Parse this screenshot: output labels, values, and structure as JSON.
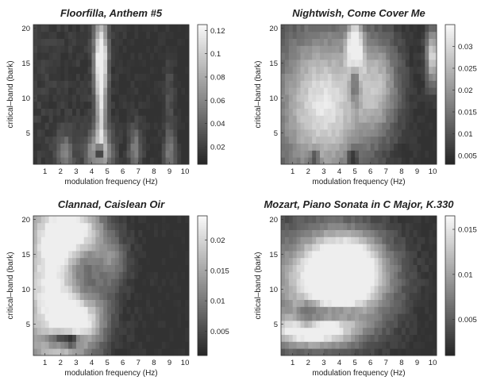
{
  "chart_data": [
    {
      "type": "heatmap",
      "title": "Floorfilla, Anthem #5",
      "xlabel": "modulation frequency (Hz)",
      "ylabel": "critical–band (bark)",
      "xticks": [
        1,
        2,
        3,
        4,
        5,
        6,
        7,
        8,
        9,
        10
      ],
      "yticks": [
        5,
        10,
        15,
        20
      ],
      "xlim": [
        0.25,
        10.25
      ],
      "ylim": [
        0.5,
        20.5
      ],
      "colorbar_ticks": [
        "0.12",
        "0.1",
        "0.08",
        "0.06",
        "0.04",
        "0.02"
      ],
      "colorbar_values": [
        0.12,
        0.1,
        0.08,
        0.06,
        0.04,
        0.02
      ],
      "clim": [
        0.005,
        0.125
      ],
      "colormap": "gray (dark = low, white = high)",
      "blobs": [
        {
          "x": 4.6,
          "y": 16,
          "sx": 0.3,
          "sy": 4,
          "value": 0.12
        },
        {
          "x": 4.6,
          "y": 8,
          "sx": 0.22,
          "sy": 6,
          "value": 0.08
        },
        {
          "x": 4.5,
          "y": 2.5,
          "sx": 0.55,
          "sy": 2,
          "value": 0.09
        },
        {
          "x": 2.3,
          "y": 2,
          "sx": 0.35,
          "sy": 2,
          "value": 0.05
        },
        {
          "x": 6.8,
          "y": 2.5,
          "sx": 0.3,
          "sy": 2.5,
          "value": 0.05
        },
        {
          "x": 9.0,
          "y": 2,
          "sx": 0.3,
          "sy": 2,
          "value": 0.045
        },
        {
          "x": 9.0,
          "y": 9,
          "sx": 0.25,
          "sy": 5,
          "value": 0.025
        }
      ],
      "dark_spots": [
        {
          "x": 4.5,
          "y": 2.2,
          "sx": 0.22,
          "sy": 1.0,
          "value": 0.005
        }
      ]
    },
    {
      "type": "heatmap",
      "title": "Nightwish, Come Cover Me",
      "xlabel": "modulation frequency (Hz)",
      "ylabel": "critical–band (bark)",
      "xticks": [
        1,
        2,
        3,
        4,
        5,
        6,
        7,
        8,
        9,
        10
      ],
      "yticks": [
        5,
        10,
        15,
        20
      ],
      "xlim": [
        0.25,
        10.25
      ],
      "ylim": [
        0.5,
        20.5
      ],
      "colorbar_ticks": [
        "0.03",
        "0.025",
        "0.02",
        "0.015",
        "0.01",
        "0.005"
      ],
      "colorbar_values": [
        0.03,
        0.025,
        0.02,
        0.015,
        0.01,
        0.005
      ],
      "clim": [
        0.003,
        0.035
      ],
      "colormap": "gray (dark = low, white = high)",
      "blobs": [
        {
          "x": 3.0,
          "y": 9,
          "sx": 2.0,
          "sy": 7.5,
          "value": 0.03
        },
        {
          "x": 5.0,
          "y": 17,
          "sx": 0.35,
          "sy": 3,
          "value": 0.034
        },
        {
          "x": 10.0,
          "y": 16,
          "sx": 0.3,
          "sy": 3,
          "value": 0.03
        },
        {
          "x": 6.5,
          "y": 12,
          "sx": 1.0,
          "sy": 5,
          "value": 0.02
        }
      ],
      "dark_spots": [
        {
          "x": 4.9,
          "y": 1.5,
          "sx": 0.25,
          "sy": 1.0,
          "value": 0.004
        },
        {
          "x": 2.4,
          "y": 1.5,
          "sx": 0.2,
          "sy": 0.8,
          "value": 0.008
        },
        {
          "x": 5.0,
          "y": 12,
          "sx": 0.25,
          "sy": 2.5,
          "value": 0.014
        }
      ]
    },
    {
      "type": "heatmap",
      "title": "Clannad, Caislean Oir",
      "xlabel": "modulation frequency (Hz)",
      "ylabel": "critical–band (bark)",
      "xticks": [
        1,
        2,
        3,
        4,
        5,
        6,
        7,
        8,
        9,
        10
      ],
      "yticks": [
        5,
        10,
        15,
        20
      ],
      "xlim": [
        0.25,
        10.25
      ],
      "ylim": [
        0.5,
        20.5
      ],
      "colorbar_ticks": [
        "0.02",
        "0.015",
        "0.01",
        "0.005"
      ],
      "colorbar_values": [
        0.02,
        0.015,
        0.01,
        0.005
      ],
      "clim": [
        0.001,
        0.024
      ],
      "colormap": "gray (dark = low, white = high)",
      "blobs": [
        {
          "x": 1.5,
          "y": 10,
          "sx": 1.5,
          "sy": 10,
          "value": 0.022
        },
        {
          "x": 3.0,
          "y": 18,
          "sx": 1.3,
          "sy": 2.5,
          "value": 0.02
        },
        {
          "x": 3.5,
          "y": 6,
          "sx": 1.0,
          "sy": 3,
          "value": 0.018
        },
        {
          "x": 5.0,
          "y": 14,
          "sx": 0.8,
          "sy": 2,
          "value": 0.012
        }
      ],
      "dark_spots": [
        {
          "x": 2.2,
          "y": 2.8,
          "sx": 0.9,
          "sy": 0.7,
          "value": 0.004
        },
        {
          "x": 2.7,
          "y": 2.6,
          "sx": 0.2,
          "sy": 0.5,
          "value": 0.002
        },
        {
          "x": 4.0,
          "y": 12,
          "sx": 1.0,
          "sy": 3,
          "value": 0.009
        }
      ]
    },
    {
      "type": "heatmap",
      "title": "Mozart, Piano Sonata in C Major, K.330",
      "xlabel": "modulation frequency (Hz)",
      "ylabel": "critical–band (bark)",
      "xticks": [
        1,
        2,
        3,
        4,
        5,
        6,
        7,
        8,
        9,
        10
      ],
      "yticks": [
        5,
        10,
        15,
        20
      ],
      "xlim": [
        0.25,
        10.25
      ],
      "ylim": [
        0.5,
        20.5
      ],
      "colorbar_ticks": [
        "0.015",
        "0.01",
        "0.005"
      ],
      "colorbar_values": [
        0.015,
        0.01,
        0.005
      ],
      "clim": [
        0.001,
        0.0165
      ],
      "colormap": "gray (dark = low, white = high)",
      "blobs": [
        {
          "x": 3.5,
          "y": 11,
          "sx": 2.5,
          "sy": 5,
          "value": 0.016
        },
        {
          "x": 2.0,
          "y": 4,
          "sx": 2.0,
          "sy": 1.5,
          "value": 0.014
        },
        {
          "x": 4.5,
          "y": 13,
          "sx": 1.5,
          "sy": 3,
          "value": 0.015
        }
      ],
      "dark_spots": [
        {
          "x": 2.0,
          "y": 6.5,
          "sx": 0.5,
          "sy": 1.2,
          "value": 0.005
        },
        {
          "x": 3.0,
          "y": 6.5,
          "sx": 1.2,
          "sy": 0.8,
          "value": 0.008
        },
        {
          "x": 4.5,
          "y": 6.5,
          "sx": 0.8,
          "sy": 0.6,
          "value": 0.009
        }
      ]
    }
  ]
}
